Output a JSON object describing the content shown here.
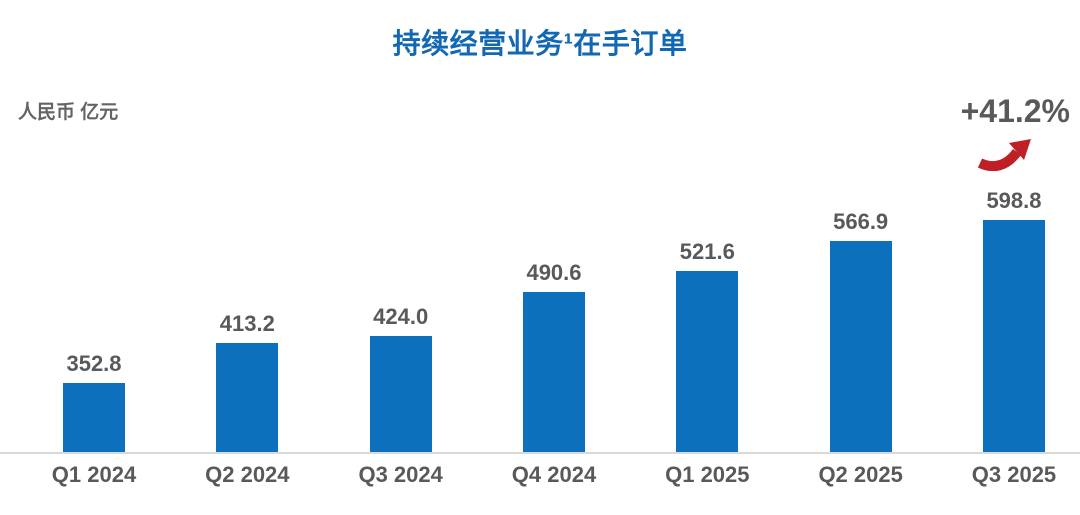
{
  "page": {
    "background": "#FFFFFF"
  },
  "header": {
    "title": "持续经营业务¹在手订单"
  },
  "annotations": {
    "unit_label": "人民币 亿元",
    "growth_label": "+41.2%"
  },
  "colors": {
    "title_blue": "#1268B3",
    "bar_blue": "#0C70BD",
    "label_gray": "#58595B",
    "unit_gray": "#646464",
    "axis_gray": "#D9D9D9",
    "arrow_red": "#BE2026"
  },
  "chart_data": {
    "type": "bar",
    "title": "持续经营业务¹在手订单",
    "unit_label": "人民币 亿元",
    "categories": [
      "Q1 2024",
      "Q2 2024",
      "Q3 2024",
      "Q4 2024",
      "Q1 2025",
      "Q2 2025",
      "Q3 2025"
    ],
    "values": [
      352.8,
      413.2,
      424.0,
      490.6,
      521.6,
      566.9,
      598.8
    ],
    "growth_annotation": "+41.2%",
    "xlabel": "",
    "ylabel": "人民币 亿元",
    "value_axis_visible": false,
    "ylim_implied": [
      247,
      715
    ],
    "grid": false,
    "legend": false,
    "bar_color": "#0C70BD",
    "data_label_format": "one_decimal"
  }
}
